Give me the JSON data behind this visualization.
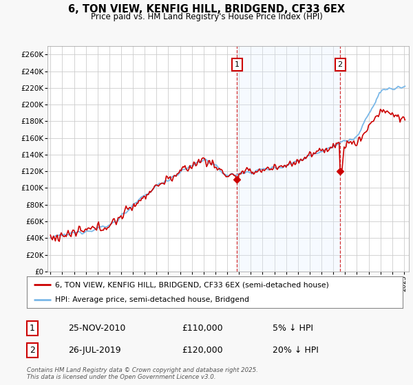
{
  "title": "6, TON VIEW, KENFIG HILL, BRIDGEND, CF33 6EX",
  "subtitle": "Price paid vs. HM Land Registry's House Price Index (HPI)",
  "ylabel_ticks": [
    "£0",
    "£20K",
    "£40K",
    "£60K",
    "£80K",
    "£100K",
    "£120K",
    "£140K",
    "£160K",
    "£180K",
    "£200K",
    "£220K",
    "£240K",
    "£260K"
  ],
  "ytick_values": [
    0,
    20000,
    40000,
    60000,
    80000,
    100000,
    120000,
    140000,
    160000,
    180000,
    200000,
    220000,
    240000,
    260000
  ],
  "ylim": [
    0,
    270000
  ],
  "hpi_color": "#7ab8e8",
  "price_color": "#cc0000",
  "fig_bg": "#f8f8f8",
  "plot_bg": "#ffffff",
  "grid_color": "#cccccc",
  "span_color": "#ddeeff",
  "annotation1": {
    "label": "1",
    "date_idx": 190,
    "price": 110000,
    "text": "25-NOV-2010",
    "amount": "£110,000",
    "pct": "5% ↓ HPI"
  },
  "annotation2": {
    "label": "2",
    "date_idx": 295,
    "price": 120000,
    "text": "26-JUL-2019",
    "amount": "£120,000",
    "pct": "20% ↓ HPI"
  },
  "legend1": "6, TON VIEW, KENFIG HILL, BRIDGEND, CF33 6EX (semi-detached house)",
  "legend2": "HPI: Average price, semi-detached house, Bridgend",
  "footnote": "Contains HM Land Registry data © Crown copyright and database right 2025.\nThis data is licensed under the Open Government Licence v3.0.",
  "xstart_year": 1995,
  "xend_year": 2025
}
